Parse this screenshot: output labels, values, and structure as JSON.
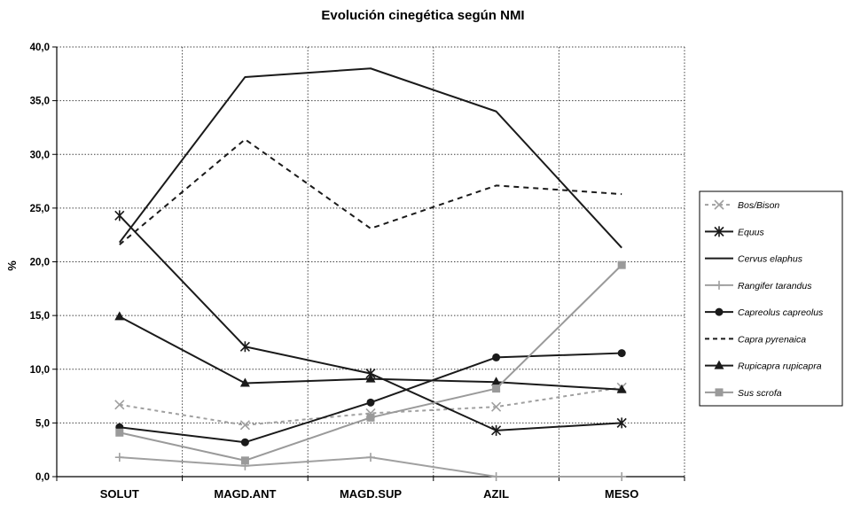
{
  "chart_data": {
    "type": "line",
    "title": "Evolución cinegética según NMI",
    "xlabel": "",
    "ylabel": "%",
    "categories": [
      "SOLUT",
      "MAGD.ANT",
      "MAGD.SUP",
      "AZIL",
      "MESO"
    ],
    "ylim": [
      0,
      40
    ],
    "yticks": [
      "0,0",
      "5,0",
      "10,0",
      "15,0",
      "20,0",
      "25,0",
      "30,0",
      "35,0",
      "40,0"
    ],
    "grid": true,
    "legend_position": "right",
    "series": [
      {
        "name": "Bos/Bison",
        "values": [
          6.7,
          4.8,
          5.9,
          6.5,
          8.3
        ],
        "color": "#a0a0a0",
        "dash": "dashed",
        "marker": "x"
      },
      {
        "name": "Equus",
        "values": [
          24.3,
          12.1,
          9.6,
          4.3,
          5.0
        ],
        "color": "#1a1a1a",
        "dash": "solid",
        "marker": "star"
      },
      {
        "name": "Cervus elaphus",
        "values": [
          21.8,
          37.2,
          38.0,
          34.0,
          21.3
        ],
        "color": "#1a1a1a",
        "dash": "solid",
        "marker": "none"
      },
      {
        "name": "Rangifer tarandus",
        "values": [
          1.8,
          1.0,
          1.8,
          0.0,
          0.0
        ],
        "color": "#a0a0a0",
        "dash": "solid",
        "marker": "plus"
      },
      {
        "name": "Capreolus capreolus",
        "values": [
          4.6,
          3.2,
          6.9,
          11.1,
          11.5
        ],
        "color": "#1a1a1a",
        "dash": "solid",
        "marker": "circle"
      },
      {
        "name": "Capra pyrenaica",
        "values": [
          21.6,
          31.4,
          23.1,
          27.1,
          26.3
        ],
        "color": "#1a1a1a",
        "dash": "dashed",
        "marker": "none"
      },
      {
        "name": "Rupicapra rupicapra",
        "values": [
          14.9,
          8.7,
          9.1,
          8.8,
          8.1
        ],
        "color": "#1a1a1a",
        "dash": "solid",
        "marker": "triangle"
      },
      {
        "name": "Sus scrofa",
        "values": [
          4.1,
          1.5,
          5.5,
          8.2,
          19.7
        ],
        "color": "#9a9a9a",
        "dash": "solid",
        "marker": "square"
      }
    ]
  }
}
